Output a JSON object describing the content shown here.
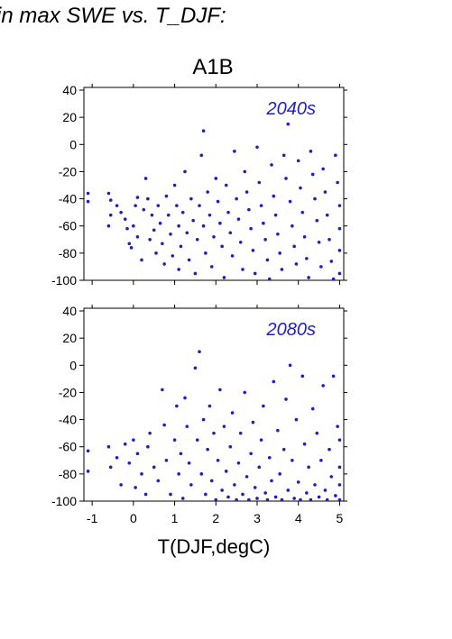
{
  "heading": "in max SWE vs. T_DJF:",
  "colors": {
    "points": "#1f1fbf",
    "panel_label": "#1f1fbf",
    "axis": "#000000"
  },
  "chart_data": {
    "type": "scatter",
    "title": "A1B",
    "xlabel": "T(DJF,degC)",
    "ylabel": "",
    "xlim": [
      -1.2,
      5.1
    ],
    "ylim": [
      -100,
      42
    ],
    "x_ticks": [
      -1,
      0,
      1,
      2,
      3,
      4,
      5
    ],
    "y_ticks": [
      -100,
      -80,
      -60,
      -40,
      -20,
      0,
      20,
      40
    ],
    "grid": false,
    "panels": [
      {
        "label": "2040s",
        "points": [
          [
            -1.1,
            -36
          ],
          [
            -1.1,
            -42
          ],
          [
            -0.6,
            -36
          ],
          [
            -0.55,
            -41
          ],
          [
            -0.6,
            -60
          ],
          [
            -0.55,
            -52
          ],
          [
            -0.4,
            -45
          ],
          [
            -0.3,
            -50
          ],
          [
            -0.2,
            -55
          ],
          [
            -0.15,
            -62
          ],
          [
            -0.1,
            -73
          ],
          [
            -0.05,
            -76
          ],
          [
            0.0,
            -60
          ],
          [
            0.05,
            -45
          ],
          [
            0.1,
            -39
          ],
          [
            0.1,
            -68
          ],
          [
            0.2,
            -85
          ],
          [
            0.25,
            -48
          ],
          [
            0.3,
            -25
          ],
          [
            0.35,
            -40
          ],
          [
            0.4,
            -70
          ],
          [
            0.45,
            -52
          ],
          [
            0.5,
            -63
          ],
          [
            0.55,
            -80
          ],
          [
            0.6,
            -45
          ],
          [
            0.65,
            -58
          ],
          [
            0.7,
            -73
          ],
          [
            0.75,
            -88
          ],
          [
            0.8,
            -38
          ],
          [
            0.85,
            -52
          ],
          [
            0.9,
            -66
          ],
          [
            0.95,
            -82
          ],
          [
            1.0,
            -30
          ],
          [
            1.05,
            -45
          ],
          [
            1.1,
            -60
          ],
          [
            1.1,
            -92
          ],
          [
            1.15,
            -75
          ],
          [
            1.2,
            -50
          ],
          [
            1.25,
            -20
          ],
          [
            1.3,
            -65
          ],
          [
            1.35,
            -85
          ],
          [
            1.4,
            -40
          ],
          [
            1.45,
            -56
          ],
          [
            1.5,
            -95
          ],
          [
            1.55,
            -70
          ],
          [
            1.6,
            -45
          ],
          [
            1.65,
            -8
          ],
          [
            1.7,
            10
          ],
          [
            1.7,
            -60
          ],
          [
            1.75,
            -80
          ],
          [
            1.8,
            -35
          ],
          [
            1.85,
            -52
          ],
          [
            1.9,
            -90
          ],
          [
            1.95,
            -68
          ],
          [
            2.0,
            -25
          ],
          [
            2.05,
            -42
          ],
          [
            2.1,
            -58
          ],
          [
            2.15,
            -75
          ],
          [
            2.2,
            -98
          ],
          [
            2.25,
            -30
          ],
          [
            2.3,
            -50
          ],
          [
            2.35,
            -65
          ],
          [
            2.4,
            -82
          ],
          [
            2.45,
            -5
          ],
          [
            2.5,
            -40
          ],
          [
            2.55,
            -55
          ],
          [
            2.6,
            -72
          ],
          [
            2.65,
            -92
          ],
          [
            2.7,
            -20
          ],
          [
            2.75,
            -35
          ],
          [
            2.8,
            -48
          ],
          [
            2.85,
            -62
          ],
          [
            2.9,
            -78
          ],
          [
            2.95,
            -95
          ],
          [
            3.0,
            -2
          ],
          [
            3.05,
            -28
          ],
          [
            3.1,
            -45
          ],
          [
            3.15,
            -58
          ],
          [
            3.2,
            -70
          ],
          [
            3.25,
            -85
          ],
          [
            3.3,
            -99
          ],
          [
            3.35,
            -15
          ],
          [
            3.4,
            -38
          ],
          [
            3.45,
            -52
          ],
          [
            3.5,
            -66
          ],
          [
            3.55,
            -80
          ],
          [
            3.6,
            -92
          ],
          [
            3.65,
            -8
          ],
          [
            3.7,
            -25
          ],
          [
            3.75,
            15
          ],
          [
            3.8,
            -42
          ],
          [
            3.85,
            -60
          ],
          [
            3.9,
            -75
          ],
          [
            3.95,
            -88
          ],
          [
            4.0,
            -12
          ],
          [
            4.05,
            -32
          ],
          [
            4.1,
            -50
          ],
          [
            4.15,
            -68
          ],
          [
            4.2,
            -84
          ],
          [
            4.25,
            -98
          ],
          [
            4.3,
            -5
          ],
          [
            4.35,
            -22
          ],
          [
            4.4,
            -40
          ],
          [
            4.45,
            -56
          ],
          [
            4.5,
            -72
          ],
          [
            4.55,
            -90
          ],
          [
            4.6,
            -18
          ],
          [
            4.65,
            -35
          ],
          [
            4.7,
            -52
          ],
          [
            4.75,
            -70
          ],
          [
            4.8,
            -86
          ],
          [
            4.85,
            -99
          ],
          [
            4.9,
            -8
          ],
          [
            4.95,
            -28
          ],
          [
            5.0,
            -45
          ],
          [
            5.0,
            -62
          ],
          [
            5.0,
            -78
          ],
          [
            5.0,
            -95
          ]
        ]
      },
      {
        "label": "2080s",
        "points": [
          [
            -1.1,
            -63
          ],
          [
            -1.1,
            -78
          ],
          [
            -0.6,
            -60
          ],
          [
            -0.55,
            -75
          ],
          [
            -0.4,
            -68
          ],
          [
            -0.3,
            -88
          ],
          [
            -0.2,
            -58
          ],
          [
            -0.1,
            -72
          ],
          [
            0.0,
            -55
          ],
          [
            0.05,
            -90
          ],
          [
            0.1,
            -65
          ],
          [
            0.2,
            -80
          ],
          [
            0.3,
            -95
          ],
          [
            0.35,
            -60
          ],
          [
            0.4,
            -50
          ],
          [
            0.5,
            -75
          ],
          [
            0.6,
            -85
          ],
          [
            0.7,
            -18
          ],
          [
            0.75,
            -44
          ],
          [
            0.8,
            -70
          ],
          [
            0.9,
            -95
          ],
          [
            1.0,
            -55
          ],
          [
            1.05,
            -30
          ],
          [
            1.1,
            -80
          ],
          [
            1.15,
            -65
          ],
          [
            1.2,
            -98
          ],
          [
            1.25,
            -24
          ],
          [
            1.3,
            -45
          ],
          [
            1.35,
            -72
          ],
          [
            1.4,
            -88
          ],
          [
            1.5,
            -2
          ],
          [
            1.55,
            -55
          ],
          [
            1.6,
            10
          ],
          [
            1.65,
            -80
          ],
          [
            1.7,
            -40
          ],
          [
            1.75,
            -95
          ],
          [
            1.8,
            -62
          ],
          [
            1.85,
            -30
          ],
          [
            1.9,
            -85
          ],
          [
            1.95,
            -50
          ],
          [
            2.0,
            -99
          ],
          [
            2.05,
            -70
          ],
          [
            2.1,
            -18
          ],
          [
            2.15,
            -92
          ],
          [
            2.2,
            -45
          ],
          [
            2.25,
            -78
          ],
          [
            2.3,
            -97
          ],
          [
            2.35,
            -60
          ],
          [
            2.4,
            -35
          ],
          [
            2.45,
            -88
          ],
          [
            2.5,
            -99
          ],
          [
            2.55,
            -72
          ],
          [
            2.6,
            -50
          ],
          [
            2.65,
            -95
          ],
          [
            2.7,
            -20
          ],
          [
            2.75,
            -82
          ],
          [
            2.8,
            -99
          ],
          [
            2.85,
            -65
          ],
          [
            2.9,
            -42
          ],
          [
            2.95,
            -90
          ],
          [
            3.0,
            -98
          ],
          [
            3.05,
            -75
          ],
          [
            3.1,
            -55
          ],
          [
            3.15,
            -30
          ],
          [
            3.2,
            -94
          ],
          [
            3.25,
            -99
          ],
          [
            3.3,
            -68
          ],
          [
            3.35,
            -85
          ],
          [
            3.4,
            -12
          ],
          [
            3.45,
            -97
          ],
          [
            3.5,
            -48
          ],
          [
            3.55,
            -80
          ],
          [
            3.6,
            -99
          ],
          [
            3.65,
            -62
          ],
          [
            3.7,
            -25
          ],
          [
            3.75,
            -92
          ],
          [
            3.8,
            0
          ],
          [
            3.85,
            -70
          ],
          [
            3.9,
            -98
          ],
          [
            3.95,
            -40
          ],
          [
            4.0,
            -86
          ],
          [
            4.05,
            -99
          ],
          [
            4.1,
            -8
          ],
          [
            4.15,
            -58
          ],
          [
            4.2,
            -94
          ],
          [
            4.25,
            -75
          ],
          [
            4.3,
            -99
          ],
          [
            4.35,
            -32
          ],
          [
            4.4,
            -88
          ],
          [
            4.45,
            -50
          ],
          [
            4.5,
            -97
          ],
          [
            4.55,
            -70
          ],
          [
            4.6,
            -15
          ],
          [
            4.65,
            -92
          ],
          [
            4.7,
            -99
          ],
          [
            4.75,
            -62
          ],
          [
            4.8,
            -82
          ],
          [
            4.85,
            -8
          ],
          [
            4.9,
            -96
          ],
          [
            4.95,
            -45
          ],
          [
            5.0,
            -99
          ],
          [
            5.0,
            -75
          ],
          [
            5.0,
            -88
          ],
          [
            5.0,
            -55
          ]
        ]
      }
    ]
  }
}
